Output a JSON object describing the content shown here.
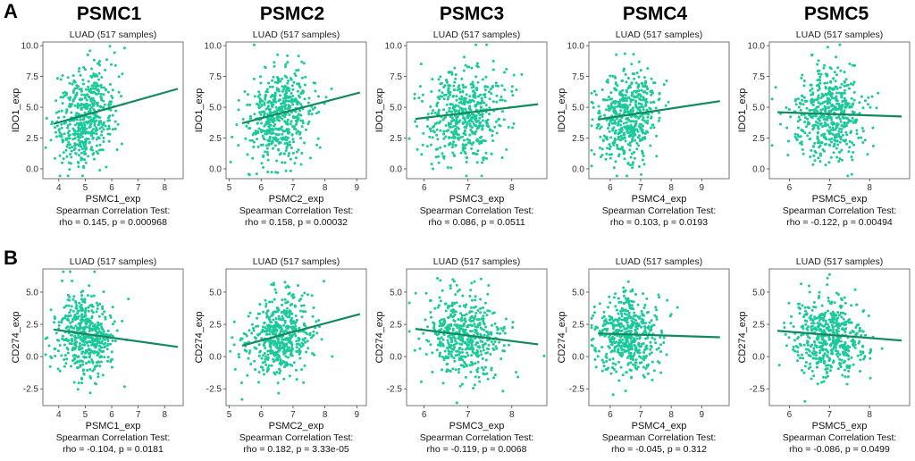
{
  "figure": {
    "panel_labels": [
      "A",
      "B"
    ],
    "column_headers": [
      "PSMC1",
      "PSMC2",
      "PSMC3",
      "PSMC4",
      "PSMC5"
    ],
    "colors": {
      "points": "#1bc99a",
      "line": "#128a5c",
      "frame": "#555555"
    }
  },
  "chart_data": [
    {
      "id": "a1",
      "type": "scatter",
      "title": "LUAD (517 samples)",
      "xlabel": "PSMC1_exp",
      "ylabel": "IDO1_exp",
      "xlim": [
        3.4,
        8.7
      ],
      "ylim": [
        -0.8,
        10.3
      ],
      "xticks": [
        4,
        5,
        6,
        7,
        8
      ],
      "yticks": [
        0.0,
        2.5,
        5.0,
        7.5,
        10.0
      ],
      "xcenter": 5.0,
      "xsd": 0.55,
      "ycenter": 4.3,
      "ysd": 1.9,
      "fit": {
        "x0": 3.8,
        "y0": 3.65,
        "x1": 8.5,
        "y1": 6.5
      },
      "stat_title": "Spearman Correlation Test:",
      "stat": "rho = 0.145, p = 0.000968"
    },
    {
      "id": "a2",
      "type": "scatter",
      "title": "LUAD (517 samples)",
      "xlabel": "PSMC2_exp",
      "ylabel": "IDO1_exp",
      "xlim": [
        4.9,
        9.3
      ],
      "ylim": [
        -0.8,
        10.3
      ],
      "xticks": [
        5,
        6,
        7,
        8,
        9
      ],
      "yticks": [
        0.0,
        2.5,
        5.0,
        7.5,
        10.0
      ],
      "xcenter": 6.6,
      "xsd": 0.5,
      "ycenter": 4.3,
      "ysd": 1.9,
      "fit": {
        "x0": 5.4,
        "y0": 3.7,
        "x1": 9.1,
        "y1": 6.2
      },
      "stat_title": "Spearman Correlation Test:",
      "stat": "rho = 0.158, p = 0.00032"
    },
    {
      "id": "a3",
      "type": "scatter",
      "title": "LUAD (517 samples)",
      "xlabel": "PSMC3_exp",
      "ylabel": "IDO1_exp",
      "xlim": [
        5.6,
        8.8
      ],
      "ylim": [
        -0.8,
        10.3
      ],
      "xticks": [
        6,
        7,
        8
      ],
      "yticks": [
        0.0,
        2.5,
        5.0,
        7.5,
        10.0
      ],
      "xcenter": 6.9,
      "xsd": 0.45,
      "ycenter": 4.4,
      "ysd": 1.9,
      "fit": {
        "x0": 5.8,
        "y0": 4.05,
        "x1": 8.6,
        "y1": 5.25
      },
      "stat_title": "Spearman Correlation Test:",
      "stat": "rho = 0.086, p = 0.0511"
    },
    {
      "id": "a4",
      "type": "scatter",
      "title": "LUAD (517 samples)",
      "xlabel": "PSMC4_exp",
      "ylabel": "IDO1_exp",
      "xlim": [
        5.3,
        9.9
      ],
      "ylim": [
        -0.8,
        10.3
      ],
      "xticks": [
        6,
        7,
        8,
        9
      ],
      "yticks": [
        0.0,
        2.5,
        5.0,
        7.5,
        10.0
      ],
      "xcenter": 6.6,
      "xsd": 0.5,
      "ycenter": 4.4,
      "ysd": 1.9,
      "fit": {
        "x0": 5.6,
        "y0": 4.0,
        "x1": 9.6,
        "y1": 5.5
      },
      "stat_title": "Spearman Correlation Test:",
      "stat": "rho = 0.103, p = 0.0193"
    },
    {
      "id": "a5",
      "type": "scatter",
      "title": "LUAD (517 samples)",
      "xlabel": "PSMC5_exp",
      "ylabel": "IDO1_exp",
      "xlim": [
        5.5,
        9.0
      ],
      "ylim": [
        -0.8,
        10.3
      ],
      "xticks": [
        6,
        7,
        8
      ],
      "yticks": [
        0.0,
        2.5,
        5.0,
        7.5,
        10.0
      ],
      "xcenter": 7.0,
      "xsd": 0.45,
      "ycenter": 4.4,
      "ysd": 1.9,
      "fit": {
        "x0": 5.7,
        "y0": 4.6,
        "x1": 8.8,
        "y1": 4.25
      },
      "stat_title": "Spearman Correlation Test:",
      "stat": "rho = -0.122, p = 0.00494"
    },
    {
      "id": "b1",
      "type": "scatter",
      "title": "LUAD (517 samples)",
      "xlabel": "PSMC1_exp",
      "ylabel": "CD274_exp",
      "xlim": [
        3.4,
        8.7
      ],
      "ylim": [
        -3.8,
        6.8
      ],
      "xticks": [
        4,
        5,
        6,
        7,
        8
      ],
      "yticks": [
        -2.5,
        0.0,
        2.5,
        5.0
      ],
      "xcenter": 5.0,
      "xsd": 0.55,
      "ycenter": 1.6,
      "ysd": 1.55,
      "fit": {
        "x0": 3.8,
        "y0": 2.1,
        "x1": 8.5,
        "y1": 0.75
      },
      "stat_title": "Spearman Correlation Test:",
      "stat": "rho = -0.104, p = 0.0181"
    },
    {
      "id": "b2",
      "type": "scatter",
      "title": "LUAD (517 samples)",
      "xlabel": "PSMC2_exp",
      "ylabel": "CD274_exp",
      "xlim": [
        4.9,
        9.3
      ],
      "ylim": [
        -3.8,
        6.8
      ],
      "xticks": [
        5,
        6,
        7,
        8,
        9
      ],
      "yticks": [
        -2.5,
        0.0,
        2.5,
        5.0
      ],
      "xcenter": 6.6,
      "xsd": 0.5,
      "ycenter": 1.6,
      "ysd": 1.55,
      "fit": {
        "x0": 5.4,
        "y0": 0.85,
        "x1": 9.1,
        "y1": 3.3
      },
      "stat_title": "Spearman Correlation Test:",
      "stat": "rho = 0.182, p = 3.33e-05"
    },
    {
      "id": "b3",
      "type": "scatter",
      "title": "LUAD (517 samples)",
      "xlabel": "PSMC3_exp",
      "ylabel": "CD274_exp",
      "xlim": [
        5.6,
        8.8
      ],
      "ylim": [
        -3.8,
        6.8
      ],
      "xticks": [
        6,
        7,
        8
      ],
      "yticks": [
        -2.5,
        0.0,
        2.5,
        5.0
      ],
      "xcenter": 6.9,
      "xsd": 0.45,
      "ycenter": 1.6,
      "ysd": 1.55,
      "fit": {
        "x0": 5.8,
        "y0": 2.15,
        "x1": 8.6,
        "y1": 0.95
      },
      "stat_title": "Spearman Correlation Test:",
      "stat": "rho = -0.119, p = 0.0068"
    },
    {
      "id": "b4",
      "type": "scatter",
      "title": "LUAD (517 samples)",
      "xlabel": "PSMC4_exp",
      "ylabel": "CD274_exp",
      "xlim": [
        5.3,
        9.9
      ],
      "ylim": [
        -3.8,
        6.8
      ],
      "xticks": [
        6,
        7,
        8,
        9
      ],
      "yticks": [
        -2.5,
        0.0,
        2.5,
        5.0
      ],
      "xcenter": 6.6,
      "xsd": 0.5,
      "ycenter": 1.6,
      "ysd": 1.55,
      "fit": {
        "x0": 5.6,
        "y0": 1.8,
        "x1": 9.6,
        "y1": 1.5
      },
      "stat_title": "Spearman Correlation Test:",
      "stat": "rho = -0.045, p = 0.312"
    },
    {
      "id": "b5",
      "type": "scatter",
      "title": "LUAD (517 samples)",
      "xlabel": "PSMC5_exp",
      "ylabel": "CD274_exp",
      "xlim": [
        5.5,
        9.0
      ],
      "ylim": [
        -3.8,
        6.8
      ],
      "xticks": [
        6,
        7,
        8
      ],
      "yticks": [
        -2.5,
        0.0,
        2.5,
        5.0
      ],
      "xcenter": 7.0,
      "xsd": 0.45,
      "ycenter": 1.6,
      "ysd": 1.55,
      "fit": {
        "x0": 5.7,
        "y0": 2.0,
        "x1": 8.8,
        "y1": 1.25
      },
      "stat_title": "Spearman Correlation Test:",
      "stat": "rho = -0.086, p = 0.0499"
    }
  ]
}
